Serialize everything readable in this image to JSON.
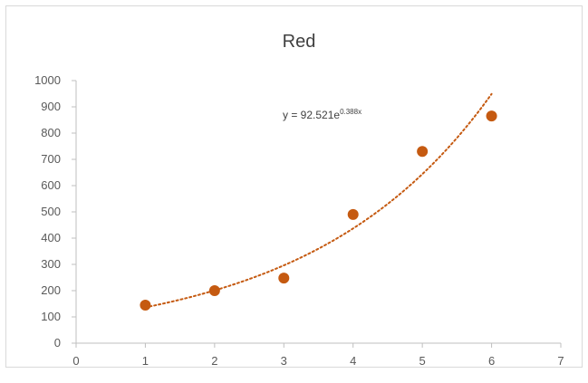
{
  "chart_data": {
    "type": "scatter",
    "title": "Red",
    "xlabel": "",
    "ylabel": "",
    "xlim": [
      0,
      7
    ],
    "ylim": [
      0,
      1000
    ],
    "x_ticks": [
      "0",
      "1",
      "2",
      "3",
      "4",
      "5",
      "6",
      "7"
    ],
    "y_ticks": [
      "0",
      "100",
      "200",
      "300",
      "400",
      "500",
      "600",
      "700",
      "800",
      "900",
      "1000"
    ],
    "grid": false,
    "legend": "none",
    "series": [
      {
        "x": [
          1,
          2,
          3,
          4,
          5,
          6
        ],
        "y": [
          145,
          200,
          248,
          490,
          730,
          865
        ],
        "color": "#c55a11"
      }
    ],
    "trendline": {
      "kind": "exponential",
      "a": 92.521,
      "b": 0.388,
      "x_range": [
        1,
        6
      ],
      "color": "#c55a11",
      "label_base": "y = 92.521e",
      "label_exponent": "0.388x"
    }
  }
}
